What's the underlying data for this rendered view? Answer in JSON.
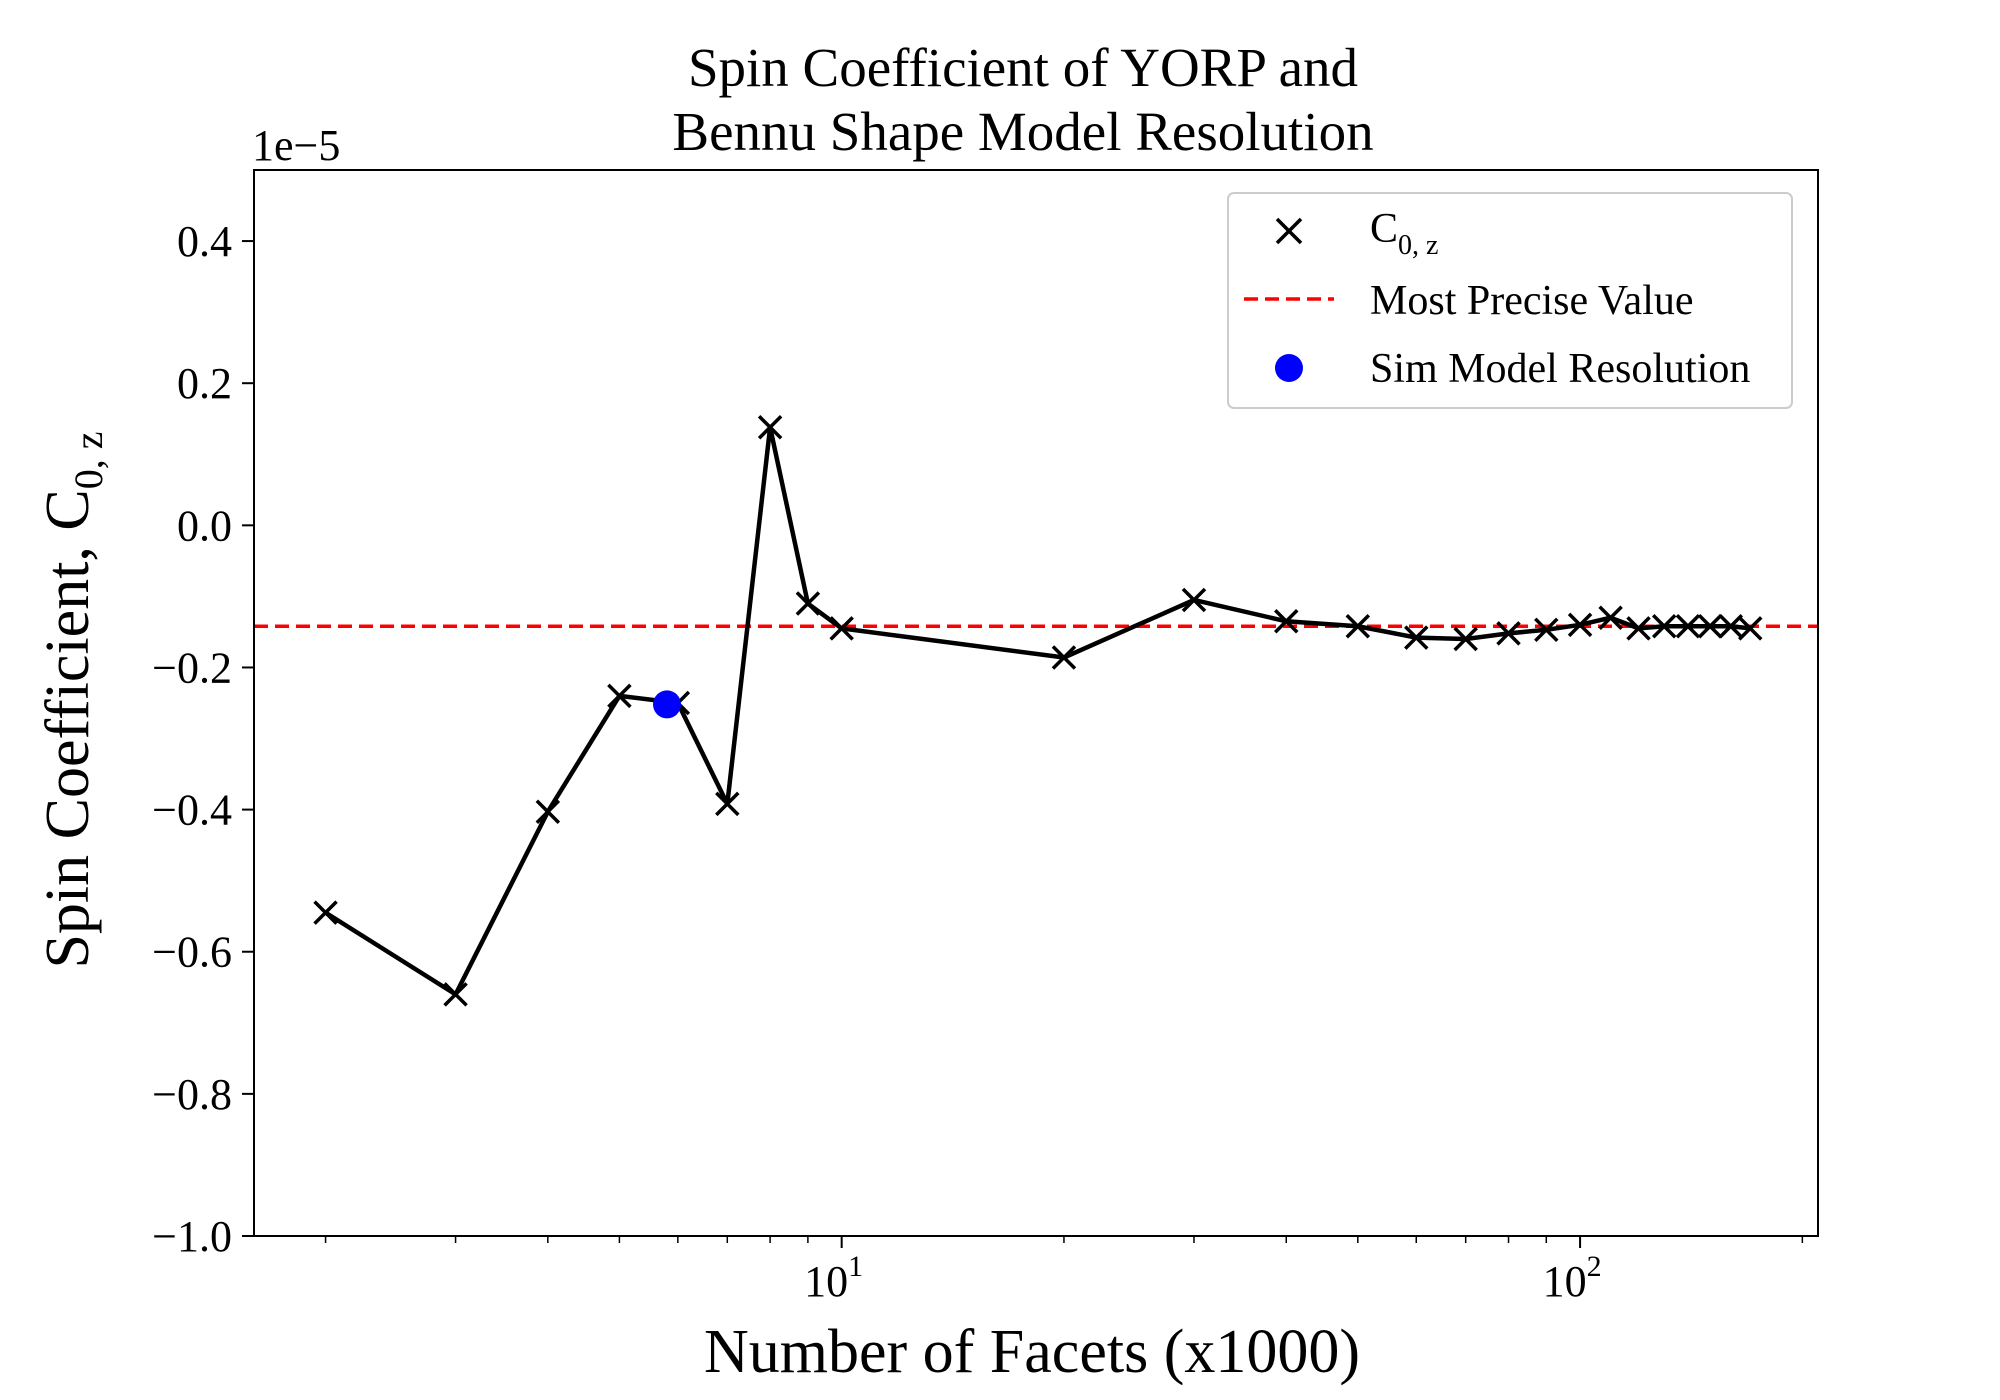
{
  "chart_data": {
    "type": "line",
    "title_lines": [
      "Spin Coefficient of YORP and",
      "Bennu Shape Model Resolution"
    ],
    "xlabel": "Number of Facets (x1000)",
    "ylabel": "Spin Coefficient, C",
    "ylabel_sub": "0, z",
    "y_offset_label": "1e−5",
    "x_scale": "log",
    "xlim": [
      1.6,
      210
    ],
    "ylim": [
      -1.0,
      0.5
    ],
    "x_ticks": [
      {
        "value": 10,
        "base": "10",
        "exp": "1"
      },
      {
        "value": 100,
        "base": "10",
        "exp": "2"
      }
    ],
    "y_ticks": [
      {
        "value": 0.4,
        "label": "0.4"
      },
      {
        "value": 0.2,
        "label": "0.2"
      },
      {
        "value": 0.0,
        "label": "0.0"
      },
      {
        "value": -0.2,
        "label": "−0.2"
      },
      {
        "value": -0.4,
        "label": "−0.4"
      },
      {
        "value": -0.6,
        "label": "−0.6"
      },
      {
        "value": -0.8,
        "label": "−0.8"
      },
      {
        "value": -1.0,
        "label": "−1.0"
      }
    ],
    "grid": false,
    "legend_position": "top-right",
    "series": [
      {
        "name": "C",
        "name_sub": "0, z",
        "marker": "x",
        "color": "#000000",
        "x": [
          2,
          3,
          4,
          5,
          6,
          7,
          8,
          9,
          10,
          20,
          30,
          40,
          50,
          60,
          70,
          80,
          90,
          100,
          110,
          120,
          130,
          140,
          150,
          160,
          170
        ],
        "y": [
          -0.545,
          -0.66,
          -0.403,
          -0.24,
          -0.25,
          -0.392,
          0.138,
          -0.11,
          -0.145,
          -0.186,
          -0.105,
          -0.135,
          -0.142,
          -0.158,
          -0.16,
          -0.152,
          -0.147,
          -0.14,
          -0.13,
          -0.145,
          -0.142,
          -0.142,
          -0.142,
          -0.142,
          -0.145
        ]
      }
    ],
    "reference_line": {
      "name": "Most Precise Value",
      "y": -0.142,
      "color": "#ff0000",
      "style": "dashed"
    },
    "highlight_point": {
      "name": "Sim Model Resolution",
      "x": 5.8,
      "y": -0.252,
      "color": "#0000ff"
    }
  }
}
